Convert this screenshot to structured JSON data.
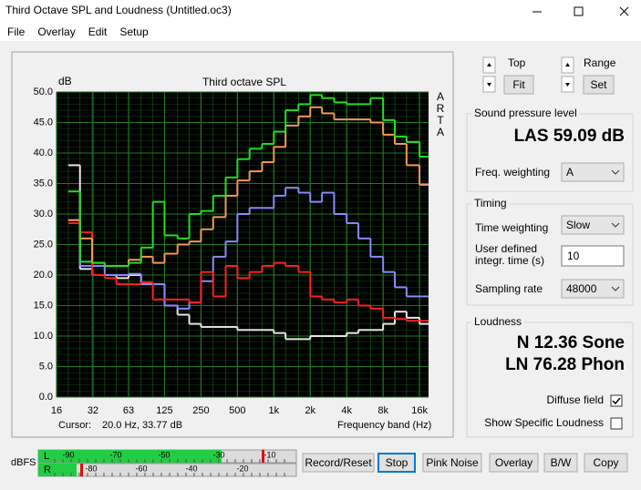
{
  "window": {
    "title": "Third Octave SPL and Loudness (Untitled.oc3)"
  },
  "menu": [
    "File",
    "Overlay",
    "Edit",
    "Setup"
  ],
  "plot": {
    "title": "Third octave SPL",
    "y_unit": "dB",
    "side_label": [
      "A",
      "R",
      "T",
      "A"
    ],
    "x_label": "Frequency band (Hz)",
    "cursor_label": "Cursor:",
    "cursor_value": "20.0 Hz, 33.77 dB",
    "xscale": "log",
    "xlim": [
      16,
      19000
    ],
    "xticks": [
      16,
      32,
      63,
      125,
      250,
      500,
      {
        "value": 1000,
        "label": "1k"
      },
      {
        "value": 2000,
        "label": "2k"
      },
      {
        "value": 4000,
        "label": "4k"
      },
      {
        "value": 8000,
        "label": "8k"
      },
      {
        "value": 16000,
        "label": "16k"
      }
    ],
    "ylim": [
      0,
      50
    ],
    "yticks": [
      {
        "value": 0,
        "label": "0.0"
      },
      {
        "value": 5,
        "label": "5.0"
      },
      {
        "value": 10,
        "label": "10.0"
      },
      {
        "value": 15,
        "label": "15.0"
      },
      {
        "value": 20,
        "label": "20.0"
      },
      {
        "value": 25,
        "label": "25.0"
      },
      {
        "value": 30,
        "label": "30.0"
      },
      {
        "value": 35,
        "label": "35.0"
      },
      {
        "value": 40,
        "label": "40.0"
      },
      {
        "value": 45,
        "label": "45.0"
      },
      {
        "value": 50,
        "label": "50.0"
      }
    ],
    "grid": true,
    "grid_color": "#1f7a1f",
    "background": "#000000",
    "x": [
      20,
      25,
      31.5,
      40,
      50,
      63,
      80,
      100,
      125,
      160,
      200,
      250,
      315,
      400,
      500,
      630,
      800,
      1000,
      1250,
      1600,
      2000,
      2500,
      3150,
      4000,
      5000,
      6300,
      8000,
      10000,
      12500,
      16000
    ],
    "series": [
      {
        "color": "#e6e6e6",
        "values": [
          38,
          21,
          20,
          20,
          19.5,
          20,
          18.5,
          18.5,
          15,
          13.5,
          12,
          11.5,
          11.5,
          11.5,
          11,
          11,
          11,
          10.5,
          9.5,
          9.5,
          10,
          10,
          10,
          10.5,
          11,
          11,
          12,
          14,
          13,
          12
        ]
      },
      {
        "color": "#8a8aff",
        "values": [
          29,
          21.5,
          21.5,
          20,
          20,
          20.2,
          18.5,
          18.5,
          15,
          14.5,
          15.5,
          19,
          23,
          25.5,
          30,
          31,
          31,
          33,
          34.3,
          33.5,
          32,
          33.5,
          30,
          28.5,
          26,
          23,
          20.5,
          18,
          16.5,
          16.5
        ]
      },
      {
        "color": "#ff2020",
        "values": [
          28.5,
          27,
          20,
          19.5,
          18.5,
          18.5,
          18.8,
          16,
          16,
          16,
          15.5,
          20.5,
          16.5,
          21.5,
          19.5,
          20.5,
          21.5,
          22,
          21.5,
          20.5,
          16.5,
          16,
          15.5,
          16,
          15,
          14.5,
          13,
          12.8,
          12.5,
          12.5
        ]
      },
      {
        "color": "#f5985a",
        "values": [
          29,
          26,
          22,
          21.5,
          21.5,
          22.5,
          23,
          22,
          23.5,
          25,
          25.5,
          27.5,
          29.5,
          33,
          35.5,
          37,
          38.5,
          41,
          44.5,
          46,
          47.5,
          46.5,
          45.5,
          45.5,
          45.5,
          45,
          43,
          41.5,
          38,
          34.8
        ]
      },
      {
        "color": "#22e022",
        "values": [
          33.7,
          22.2,
          22,
          21.5,
          21.5,
          22,
          24.5,
          32,
          26.5,
          26,
          30,
          30.5,
          33,
          36,
          39,
          40.7,
          41.5,
          43.5,
          47,
          48,
          49.5,
          49,
          48.3,
          48,
          48,
          49,
          45.4,
          42.7,
          41.8,
          39.4
        ]
      }
    ]
  },
  "scale_panel": {
    "top_label": "Top",
    "fit": "Fit",
    "range_label": "Range",
    "set": "Set"
  },
  "spl_group": {
    "label": "Sound pressure level",
    "reading": "LAS 59.09 dB",
    "weighting_label": "Freq. weighting",
    "weighting": "A"
  },
  "timing_group": {
    "label": "Timing",
    "time_weighting_label": "Time weighting",
    "time_weighting": "Slow",
    "integr_label_1": "User defined",
    "integr_label_2": "integr. time (s)",
    "integr_time": "10",
    "sampling_label": "Sampling rate",
    "sampling_rate": "48000"
  },
  "loudness_group": {
    "label": "Loudness",
    "n": "N 12.36 Sone",
    "ln": "LN 76.28 Phon",
    "diffuse": "Diffuse field",
    "diffuse_checked": true,
    "specific": "Show Specific Loudness",
    "specific_checked": false
  },
  "meter": {
    "unit": "dBFS",
    "left": "L",
    "right": "R",
    "left_scale": [
      "-90",
      "-70",
      "-50",
      "-30",
      "-10"
    ],
    "right_scale": [
      "-80",
      "-60",
      "-40",
      "-20"
    ]
  },
  "buttons": [
    "Record/Reset",
    "Stop",
    "Pink Noise",
    "Overlay",
    "B/W",
    "Copy"
  ]
}
